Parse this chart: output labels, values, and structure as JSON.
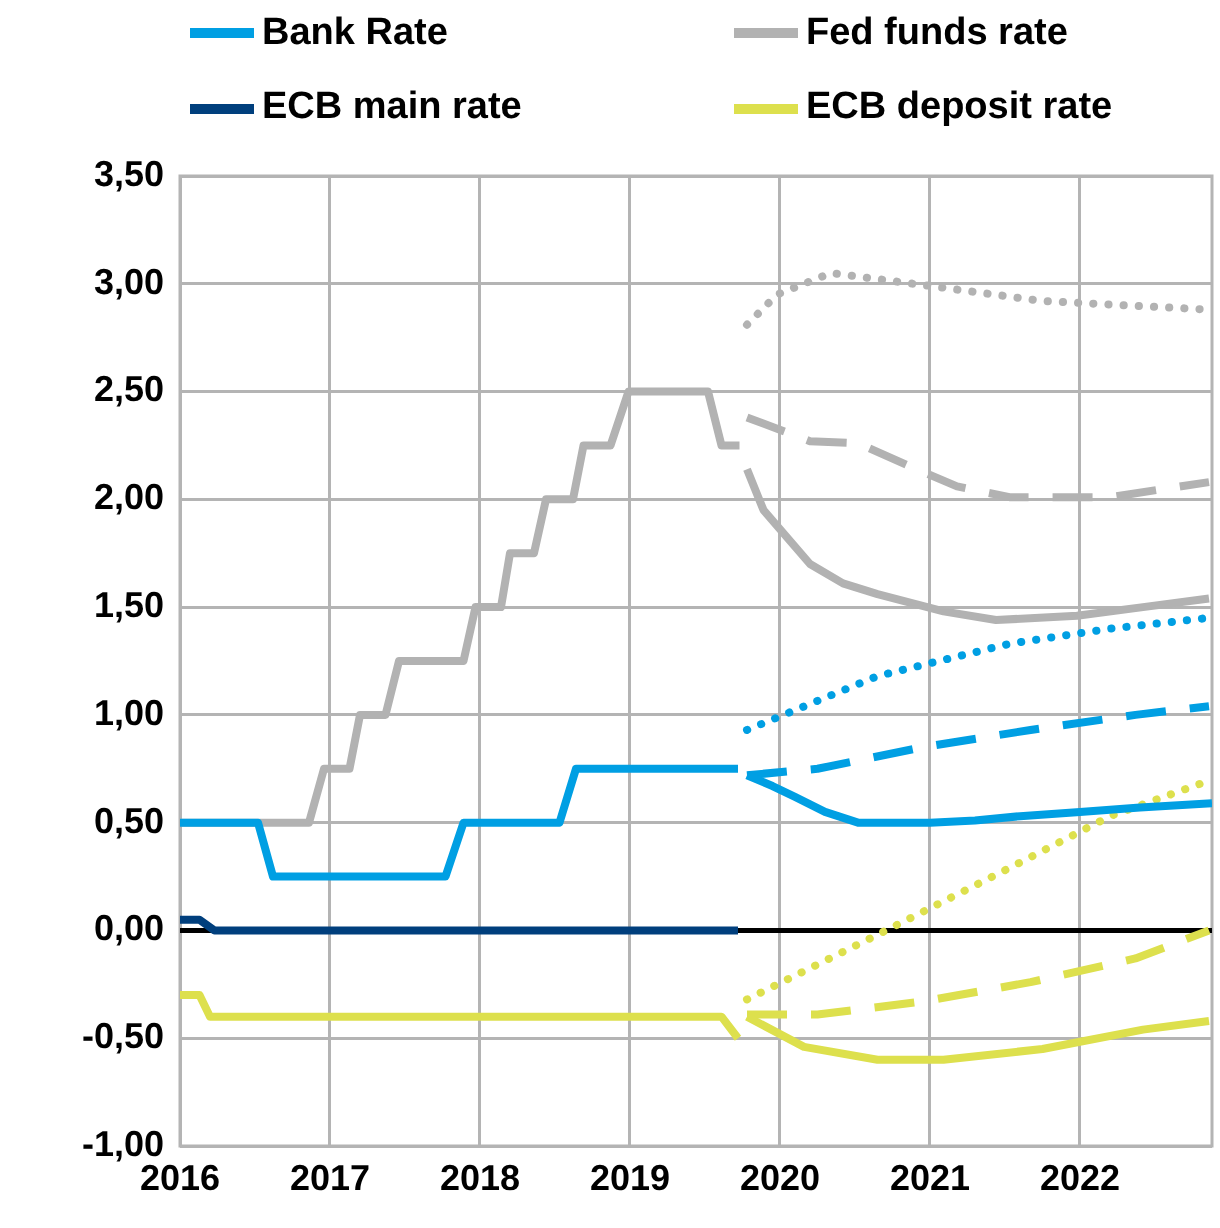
{
  "chart_data": {
    "type": "line",
    "xlim": [
      2016,
      2022.88
    ],
    "xticks": [
      2016,
      2017,
      2018,
      2019,
      2020,
      2021,
      2022
    ],
    "ylim": [
      -1,
      3.5
    ],
    "yticks": [
      {
        "value": -1,
        "label": "-1,00"
      },
      {
        "value": -0.5,
        "label": "-0,50"
      },
      {
        "value": 0,
        "label": "0,00"
      },
      {
        "value": 0.5,
        "label": "0,50"
      },
      {
        "value": 1,
        "label": "1,00"
      },
      {
        "value": 1.5,
        "label": "1,50"
      },
      {
        "value": 2,
        "label": "2,00"
      },
      {
        "value": 2.5,
        "label": "2,50"
      },
      {
        "value": 3,
        "label": "3,00"
      },
      {
        "value": 3.5,
        "label": "3,50"
      }
    ],
    "grid": true,
    "legend": "top",
    "marker": "none",
    "ref_lines": [
      {
        "axis": "y",
        "value": 0,
        "color": "#000000",
        "line_style": "solid"
      }
    ],
    "series": [
      {
        "name": "Bank Rate",
        "color": "#009fe3",
        "line_style": "solid",
        "x": [
          2016,
          2016.52,
          2016.62,
          2017.77,
          2017.89,
          2018.53,
          2018.64,
          2019.72
        ],
        "values": [
          0.5,
          0.5,
          0.25,
          0.25,
          0.5,
          0.5,
          0.75,
          0.75
        ]
      },
      {
        "name": "Fed funds rate",
        "color": "#b2b2b2",
        "line_style": "solid",
        "x": [
          2016,
          2016.86,
          2016.96,
          2017.13,
          2017.2,
          2017.37,
          2017.46,
          2017.89,
          2017.97,
          2018.14,
          2018.2,
          2018.36,
          2018.44,
          2018.62,
          2018.69,
          2018.87,
          2018.99,
          2019.52,
          2019.61,
          2019.73
        ],
        "values": [
          0.5,
          0.5,
          0.75,
          0.75,
          1,
          1,
          1.25,
          1.25,
          1.5,
          1.5,
          1.75,
          1.75,
          2,
          2,
          2.25,
          2.25,
          2.5,
          2.5,
          2.25,
          2.25
        ]
      },
      {
        "name": "ECB main rate",
        "color": "#003f7d",
        "line_style": "solid",
        "x": [
          2016,
          2016.13,
          2016.23,
          2019.72
        ],
        "values": [
          0.05,
          0.05,
          0,
          0
        ]
      },
      {
        "name": "ECB deposit rate",
        "color": "#dde04d",
        "line_style": "solid",
        "x": [
          2016,
          2016.13,
          2016.2,
          2019.61,
          2019.72
        ],
        "values": [
          -0.3,
          -0.3,
          -0.4,
          -0.4,
          -0.5
        ]
      },
      {
        "color": "#009fe3",
        "line_style": "solid",
        "x": [
          2019.78,
          2019.95,
          2020.1,
          2020.3,
          2020.52,
          2021,
          2021.3,
          2021.6,
          2022,
          2022.4,
          2022.88
        ],
        "values": [
          0.72,
          0.67,
          0.62,
          0.55,
          0.5,
          0.5,
          0.51,
          0.53,
          0.55,
          0.57,
          0.59
        ]
      },
      {
        "color": "#009fe3",
        "line_style": "dashed",
        "x": [
          2019.78,
          2020.25,
          2020.95,
          2021.67,
          2022.37,
          2022.86
        ],
        "values": [
          0.72,
          0.75,
          0.85,
          0.93,
          1,
          1.04
        ]
      },
      {
        "color": "#009fe3",
        "line_style": "dotted",
        "x": [
          2019.78,
          2020.65,
          2021.53,
          2022.2,
          2022.86
        ],
        "values": [
          0.93,
          1.18,
          1.33,
          1.4,
          1.45
        ]
      },
      {
        "color": "#b2b2b2",
        "line_style": "solid",
        "x": [
          2019.78,
          2019.89,
          2020.2,
          2020.42,
          2020.65,
          2021.09,
          2021.44,
          2021.98,
          2022.42,
          2022.86
        ],
        "values": [
          2.14,
          1.95,
          1.7,
          1.61,
          1.56,
          1.48,
          1.44,
          1.46,
          1.5,
          1.54
        ]
      },
      {
        "color": "#b2b2b2",
        "line_style": "dashed",
        "x": [
          2019.78,
          2020.2,
          2020.52,
          2020.91,
          2021.18,
          2021.53,
          2022.2,
          2022.86
        ],
        "values": [
          2.38,
          2.27,
          2.26,
          2.14,
          2.06,
          2.01,
          2.01,
          2.08
        ]
      },
      {
        "color": "#b2b2b2",
        "line_style": "dotted",
        "x": [
          2019.78,
          2019.98,
          2020.34,
          2021,
          2021.75,
          2022.86
        ],
        "values": [
          2.81,
          2.95,
          3.05,
          2.99,
          2.92,
          2.88
        ]
      },
      {
        "color": "#dde04d",
        "line_style": "solid",
        "x": [
          2019.78,
          2020.16,
          2020.65,
          2021.09,
          2021.75,
          2022.42,
          2022.86
        ],
        "values": [
          -0.4,
          -0.54,
          -0.6,
          -0.6,
          -0.55,
          -0.46,
          -0.42
        ]
      },
      {
        "color": "#dde04d",
        "line_style": "dashed",
        "x": [
          2019.78,
          2020.25,
          2020.95,
          2021.67,
          2022.37,
          2022.86
        ],
        "values": [
          -0.39,
          -0.39,
          -0.33,
          -0.24,
          -0.13,
          0
        ]
      },
      {
        "color": "#dde04d",
        "line_style": "dotted",
        "x": [
          2019.78,
          2020.65,
          2021.53,
          2022.2,
          2022.8
        ],
        "values": [
          -0.32,
          -0.02,
          0.29,
          0.53,
          0.68
        ]
      }
    ]
  }
}
